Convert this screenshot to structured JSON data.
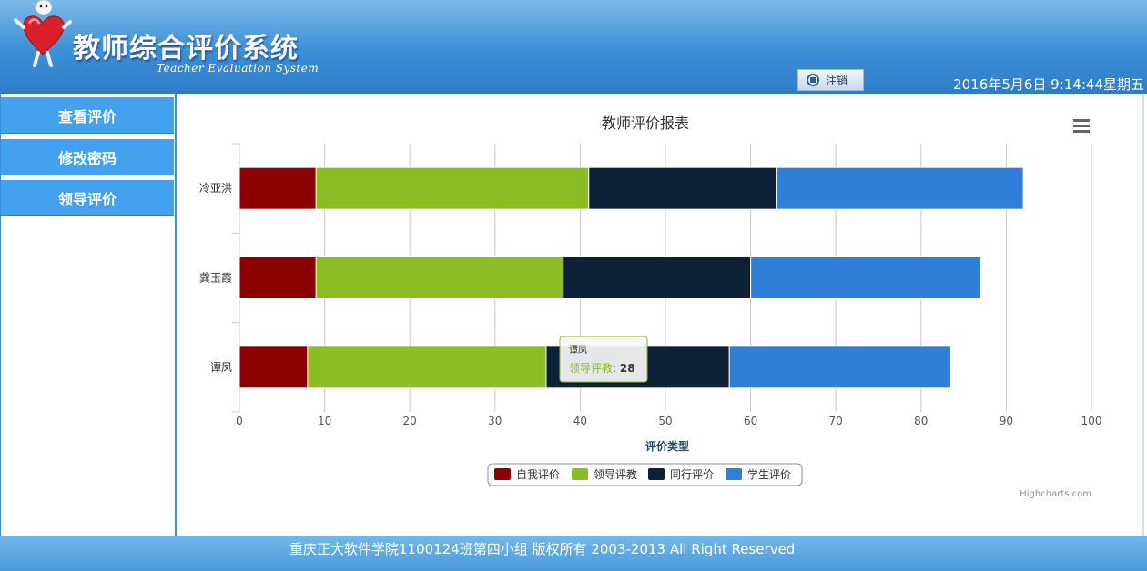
{
  "header": {
    "title": "教师综合评价系统",
    "subtitle": "Teacher Evaluation System",
    "logout_label": "注销",
    "datetime": "2016年5月6日 9:14:44星期五"
  },
  "sidebar": {
    "items": [
      {
        "label": "查看评价"
      },
      {
        "label": "修改密码"
      },
      {
        "label": "领导评价"
      }
    ]
  },
  "chart_data": {
    "type": "bar",
    "stacked": true,
    "orientation": "horizontal",
    "title": "教师评价报表",
    "xlabel": "评价类型",
    "categories": [
      "冷亚洪",
      "龚玉霞",
      "谭凤"
    ],
    "series": [
      {
        "name": "自我评价",
        "color": "#8b0000",
        "values": [
          9,
          9,
          8
        ]
      },
      {
        "name": "领导评教",
        "color": "#8dbd24",
        "values": [
          32,
          29,
          28
        ]
      },
      {
        "name": "同行评价",
        "color": "#0e2137",
        "values": [
          22,
          22,
          21.5
        ]
      },
      {
        "name": "学生评价",
        "color": "#2f7fd8",
        "values": [
          29,
          27,
          26
        ]
      }
    ],
    "xlim": [
      0,
      100
    ],
    "ticks": [
      "0",
      "10",
      "20",
      "30",
      "40",
      "50",
      "60",
      "70",
      "80",
      "90",
      "100"
    ],
    "grid": true,
    "legend": "bottom-center",
    "tooltip": {
      "category": "谭凤",
      "series": "领导评教",
      "value": "28"
    },
    "credits": "Highcharts.com"
  },
  "footer": {
    "copyright": "重庆正大软件学院1100124班第四小组 版权所有 2003-2013 All Right Reserved"
  }
}
